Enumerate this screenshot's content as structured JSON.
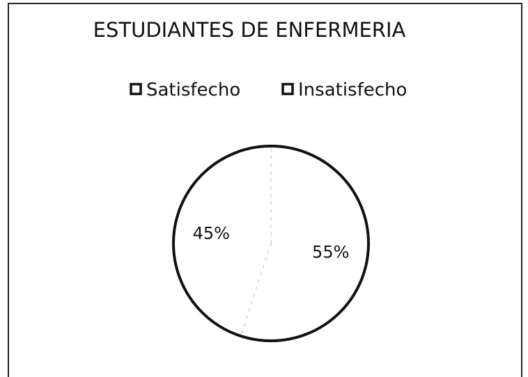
{
  "chart_data": {
    "type": "pie",
    "title": "ESTUDIANTES DE ENFERMERIA",
    "categories": [
      "Satisfecho",
      "Insatisfecho"
    ],
    "values": [
      55,
      45
    ],
    "value_labels": [
      "55%",
      "45%"
    ],
    "colors": [
      "#ffffff",
      "#ffffff"
    ],
    "legend": "top"
  }
}
